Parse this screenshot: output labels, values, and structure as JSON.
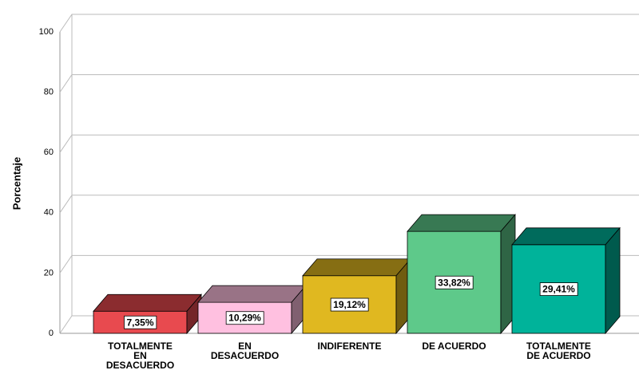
{
  "chart_data": {
    "type": "bar3d",
    "y_label": "Porcentaje",
    "categories": [
      "TOTALMENTE\nEN\nDESACUERDO",
      "EN\nDESACUERDO",
      "INDIFERENTE",
      "DE ACUERDO",
      "TOTALMENTE\nDE ACUERDO"
    ],
    "values": [
      7.35,
      10.29,
      19.12,
      33.82,
      29.41
    ],
    "value_labels": [
      "7,35%",
      "10,29%",
      "19,12%",
      "33,82%",
      "29,41%"
    ],
    "colors": [
      "#e84a4f",
      "#ffc0e0",
      "#e0b820",
      "#5ec98a",
      "#00b39a"
    ],
    "ylim": [
      0,
      100
    ],
    "yticks": [
      0,
      20,
      40,
      60,
      80,
      100
    ],
    "grid": true
  }
}
